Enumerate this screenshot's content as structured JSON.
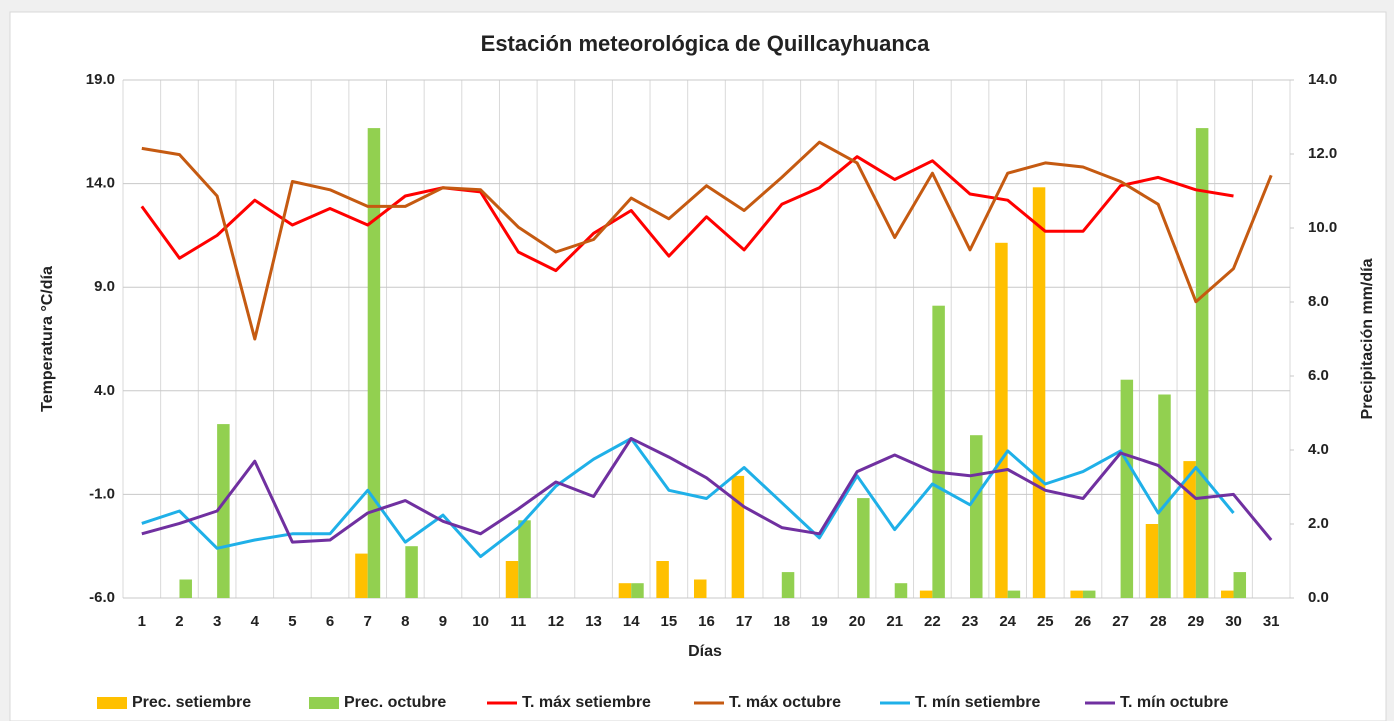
{
  "chart_data": {
    "type": "combo",
    "title": "Estación meteorológica de Quillcayhuanca",
    "x_label": "Días",
    "y_label": "Temperatura °C/día",
    "y2_label": "Precipitación mm/día",
    "categories": [
      "1",
      "2",
      "3",
      "4",
      "5",
      "6",
      "7",
      "8",
      "9",
      "10",
      "11",
      "12",
      "13",
      "14",
      "15",
      "16",
      "17",
      "18",
      "19",
      "20",
      "21",
      "22",
      "23",
      "24",
      "25",
      "26",
      "27",
      "28",
      "29",
      "30",
      "31"
    ],
    "ylim": [
      -6,
      19
    ],
    "yticks": [
      {
        "value": -6,
        "label": "-6.0"
      },
      {
        "value": -1,
        "label": "-1.0"
      },
      {
        "value": 4,
        "label": "4.0"
      },
      {
        "value": 9,
        "label": "9.0"
      },
      {
        "value": 14,
        "label": "14.0"
      },
      {
        "value": 19,
        "label": "19.0"
      }
    ],
    "y2lim": [
      0,
      14
    ],
    "y2ticks": [
      {
        "value": 0,
        "label": "0.0"
      },
      {
        "value": 2,
        "label": "2.0"
      },
      {
        "value": 4,
        "label": "4.0"
      },
      {
        "value": 6,
        "label": "6.0"
      },
      {
        "value": 8,
        "label": "8.0"
      },
      {
        "value": 10,
        "label": "10.0"
      },
      {
        "value": 12,
        "label": "12.0"
      },
      {
        "value": 14,
        "label": "14.0"
      }
    ],
    "grid": true,
    "legend": "bottom",
    "series": [
      {
        "name": "Prec. setiembre",
        "type": "bar",
        "axis": "y2",
        "color": "#ffc000",
        "values": [
          0,
          0,
          0,
          0,
          0,
          0,
          1.2,
          0,
          0,
          0,
          1.0,
          0,
          0,
          0.4,
          1.0,
          0.5,
          3.3,
          0,
          0,
          0,
          0,
          0.2,
          0,
          9.6,
          11.1,
          0.2,
          0,
          2.0,
          3.7,
          0.2,
          0
        ]
      },
      {
        "name": "Prec. octubre",
        "type": "bar",
        "axis": "y2",
        "color": "#92d050",
        "values": [
          0,
          0.5,
          4.7,
          0,
          0,
          0,
          12.7,
          1.4,
          0,
          0,
          2.1,
          0,
          0,
          0.4,
          0,
          0,
          0,
          0.7,
          0,
          2.7,
          0.4,
          7.9,
          4.4,
          0.2,
          0,
          0.2,
          5.9,
          5.5,
          12.7,
          0.7,
          0
        ]
      },
      {
        "name": "T. máx setiembre",
        "type": "line",
        "color": "#ff0000",
        "values": [
          12.9,
          10.4,
          11.5,
          13.2,
          12.0,
          12.8,
          12.0,
          13.4,
          13.8,
          13.6,
          10.7,
          9.8,
          11.6,
          12.7,
          10.5,
          12.4,
          10.8,
          13.0,
          13.8,
          15.3,
          14.2,
          15.1,
          13.5,
          13.2,
          11.7,
          11.7,
          13.9,
          14.3,
          13.7,
          13.4,
          null
        ]
      },
      {
        "name": "T. máx octubre",
        "type": "line",
        "color": "#c55a11",
        "values": [
          15.7,
          15.4,
          13.4,
          6.5,
          14.1,
          13.7,
          12.9,
          12.9,
          13.8,
          13.7,
          11.9,
          10.7,
          11.3,
          13.3,
          12.3,
          13.9,
          12.7,
          14.3,
          16.0,
          15.0,
          11.4,
          14.5,
          10.8,
          14.5,
          15.0,
          14.8,
          14.1,
          13.0,
          8.3,
          9.9,
          14.4
        ]
      },
      {
        "name": "T. mín setiembre",
        "type": "line",
        "color": "#1fb0e8",
        "values": [
          -2.4,
          -1.8,
          -3.6,
          -3.2,
          -2.9,
          -2.9,
          -0.8,
          -3.3,
          -2.0,
          -4.0,
          -2.6,
          -0.6,
          0.7,
          1.7,
          -0.8,
          -1.2,
          0.3,
          -1.4,
          -3.1,
          -0.1,
          -2.7,
          -0.5,
          -1.5,
          1.1,
          -0.5,
          0.1,
          1.1,
          -1.9,
          0.3,
          -1.9,
          null
        ]
      },
      {
        "name": "T. mín octubre",
        "type": "line",
        "color": "#7030a0",
        "values": [
          -2.9,
          -2.4,
          -1.8,
          0.6,
          -3.3,
          -3.2,
          -1.9,
          -1.3,
          -2.3,
          -2.9,
          -1.7,
          -0.4,
          -1.1,
          1.7,
          0.8,
          -0.2,
          -1.6,
          -2.6,
          -2.9,
          0.1,
          0.9,
          0.1,
          -0.1,
          0.2,
          -0.8,
          -1.2,
          1.0,
          0.4,
          -1.2,
          -1.0,
          -3.2
        ]
      }
    ]
  }
}
